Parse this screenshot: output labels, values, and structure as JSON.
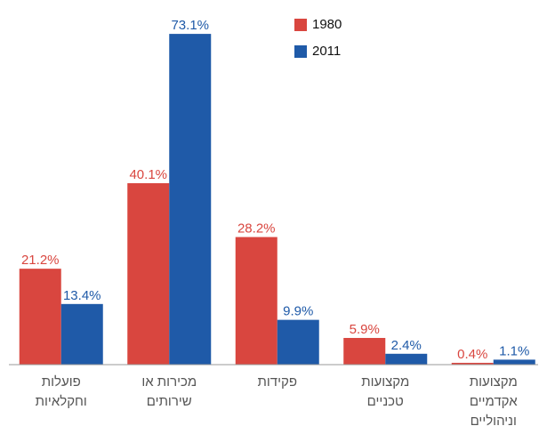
{
  "chart_data": {
    "type": "bar",
    "categories": [
      "פועלות\nוחקלאיות",
      "מכירות או\nשירותים",
      "פקידות",
      "מקצועות\nטכניים",
      "מקצועות\nאקדמיים\nוניהוליים"
    ],
    "series": [
      {
        "name": "1980",
        "color": "#d9463f",
        "values": [
          21.2,
          40.1,
          28.2,
          5.9,
          0.4
        ],
        "value_labels": [
          "21.2%",
          "40.1%",
          "28.2%",
          "5.9%",
          "0.4%"
        ]
      },
      {
        "name": "2011",
        "color": "#1f5aa8",
        "values": [
          13.4,
          73.1,
          9.9,
          2.4,
          1.1
        ],
        "value_labels": [
          "13.4%",
          "73.1%",
          "9.9%",
          "2.4%",
          "1.1%"
        ]
      }
    ],
    "ylim": [
      0,
      80
    ],
    "legend": "top-right"
  }
}
